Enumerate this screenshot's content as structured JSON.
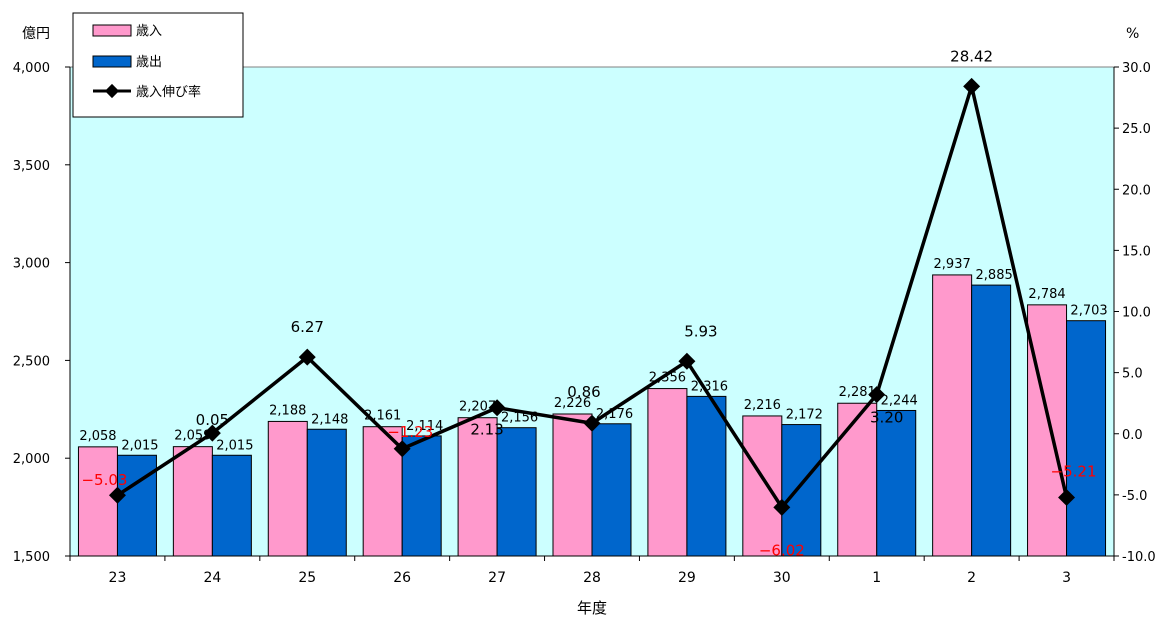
{
  "chart_data": {
    "type": "bar",
    "categories": [
      "23",
      "24",
      "25",
      "26",
      "27",
      "28",
      "29",
      "30",
      "1",
      "2",
      "3"
    ],
    "series": [
      {
        "name": "歳入",
        "kind": "bar",
        "axis": "left",
        "color": "#FF99CC",
        "values": [
          2058,
          2059,
          2188,
          2161,
          2207,
          2226,
          2356,
          2216,
          2281,
          2937,
          2784
        ],
        "labels": [
          "2,058",
          "2,059",
          "2,188",
          "2,161",
          "2,207",
          "2,226",
          "2,356",
          "2,216",
          "2,281",
          "2,937",
          "2,784"
        ]
      },
      {
        "name": "歳出",
        "kind": "bar",
        "axis": "left",
        "color": "#0066CC",
        "values": [
          2015,
          2015,
          2148,
          2114,
          2156,
          2176,
          2316,
          2172,
          2244,
          2885,
          2703
        ],
        "labels": [
          "2,015",
          "2,015",
          "2,148",
          "2,114",
          "2,156",
          "2,176",
          "2,316",
          "2,172",
          "2,244",
          "2,885",
          "2,703"
        ]
      },
      {
        "name": "歳入伸び率",
        "kind": "line",
        "axis": "right",
        "color": "#000000",
        "values": [
          -5.03,
          0.05,
          6.27,
          -1.23,
          2.13,
          0.86,
          5.93,
          -6.02,
          3.2,
          28.42,
          -5.21
        ],
        "labels": [
          "−5.03",
          "0.05",
          "6.27",
          "−1.23",
          "2.13",
          "0.86",
          "5.93",
          "−6.02",
          "3.20",
          "28.42",
          "−5.21"
        ],
        "label_colors": [
          "#FF0000",
          "#000000",
          "#000000",
          "#FF0000",
          "#000000",
          "#000000",
          "#000000",
          "#FF0000",
          "#000000",
          "#000000",
          "#FF0000"
        ]
      }
    ],
    "ylabel": "億円",
    "ylim": [
      1500,
      4000
    ],
    "yticks": [
      "1,500",
      "2,000",
      "2,500",
      "3,000",
      "3,500",
      "4,000"
    ],
    "y2label": "%",
    "y2lim": [
      -10,
      30
    ],
    "y2ticks": [
      "-10.0",
      "-5.0",
      "0.0",
      "5.0",
      "10.0",
      "15.0",
      "20.0",
      "25.0",
      "30.0"
    ],
    "xlabel": "年度",
    "legend_position": "top-left",
    "plot_background": "#CCFFFF",
    "grid": false
  }
}
